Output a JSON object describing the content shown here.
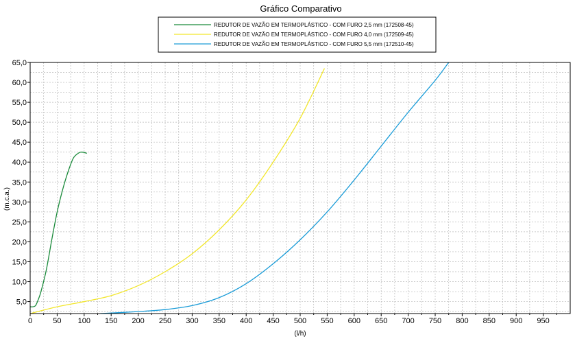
{
  "chart_data": {
    "type": "line",
    "title": "Gráfico Comparativo",
    "xlabel": "(l/h)",
    "ylabel": "(m.c.a.)",
    "xlim": [
      0,
      1000
    ],
    "ylim": [
      2.0,
      65.0
    ],
    "grid": true,
    "legend_position": "top-center",
    "xticks": [
      "0",
      "50",
      "100",
      "150",
      "200",
      "250",
      "300",
      "350",
      "400",
      "450",
      "500",
      "550",
      "600",
      "650",
      "700",
      "750",
      "800",
      "850",
      "900",
      "950"
    ],
    "yticks": [
      "5,0",
      "10,0",
      "15,0",
      "20,0",
      "25,0",
      "30,0",
      "35,0",
      "40,0",
      "45,0",
      "50,0",
      "55,0",
      "60,0",
      "65,0"
    ],
    "series": [
      {
        "name": "REDUTOR DE VAZÃO EM TERMOPLÁSTICO - COM FURO 2,5 mm (172508-45)",
        "color": "#1a8a3a",
        "x": [
          0,
          5,
          10,
          15,
          20,
          30,
          40,
          50,
          60,
          70,
          80,
          90,
          95,
          100,
          105
        ],
        "y": [
          3.7,
          3.7,
          4.0,
          5.5,
          7.5,
          13.0,
          20.5,
          27.5,
          33.0,
          37.5,
          41.0,
          42.3,
          42.5,
          42.4,
          42.2
        ]
      },
      {
        "name": "REDUTOR DE VAZÃO EM TERMOPLÁSTICO - COM FURO 4,0 mm (172509-45)",
        "color": "#f2e62a",
        "x": [
          0,
          50,
          100,
          150,
          200,
          250,
          300,
          350,
          400,
          450,
          500,
          545
        ],
        "y": [
          2.0,
          3.7,
          5.0,
          6.5,
          9.0,
          12.5,
          17.0,
          23.0,
          30.5,
          40.0,
          51.0,
          63.5
        ]
      },
      {
        "name": "REDUTOR DE VAZÃO EM TERMOPLÁSTICO - COM FURO 5,5 mm (172510-45)",
        "color": "#1a9cd8",
        "x": [
          130,
          200,
          250,
          300,
          350,
          400,
          450,
          500,
          550,
          600,
          650,
          700,
          750,
          775
        ],
        "y": [
          2.0,
          2.5,
          3.0,
          4.0,
          6.0,
          9.5,
          14.5,
          20.5,
          27.5,
          35.5,
          44.0,
          52.5,
          60.5,
          65.0
        ]
      }
    ]
  }
}
